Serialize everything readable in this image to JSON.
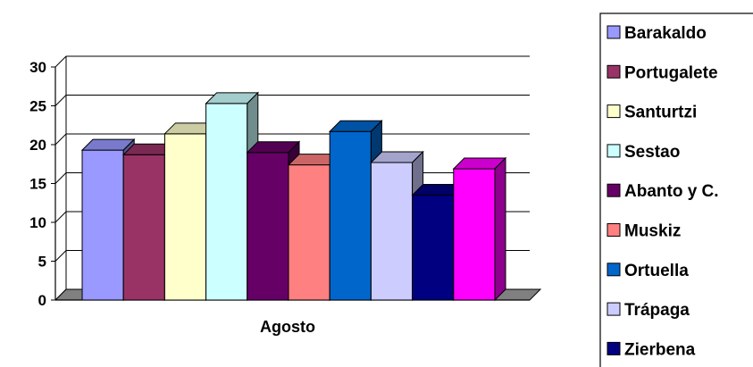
{
  "chart_data": {
    "type": "bar",
    "style": "3d-clustered-column",
    "categories": [
      "Agosto"
    ],
    "series": [
      {
        "name": "Barakaldo",
        "values": [
          19.3
        ],
        "color": "#9999FF"
      },
      {
        "name": "Portugalete",
        "values": [
          18.7
        ],
        "color": "#993366"
      },
      {
        "name": "Santurtzi",
        "values": [
          21.4
        ],
        "color": "#FFFFCC"
      },
      {
        "name": "Sestao",
        "values": [
          25.3
        ],
        "color": "#CCFFFF"
      },
      {
        "name": "Abanto y C.",
        "values": [
          19.0
        ],
        "color": "#660066"
      },
      {
        "name": "Muskiz",
        "values": [
          17.4
        ],
        "color": "#FF8080"
      },
      {
        "name": "Ortuella",
        "values": [
          21.7
        ],
        "color": "#0066CC"
      },
      {
        "name": "Trápaga",
        "values": [
          17.7
        ],
        "color": "#CCCCFF"
      },
      {
        "name": "Zierbena",
        "values": [
          13.5
        ],
        "color": "#000080"
      },
      {
        "name": "",
        "values": [
          16.9
        ],
        "color": "#FF00FF"
      }
    ],
    "yticks": [
      "0",
      "5",
      "10",
      "15",
      "20",
      "25",
      "30"
    ],
    "ylim": [
      0,
      30
    ],
    "grid": true,
    "legend": "right",
    "title": "",
    "xlabel": "",
    "ylabel": ""
  }
}
